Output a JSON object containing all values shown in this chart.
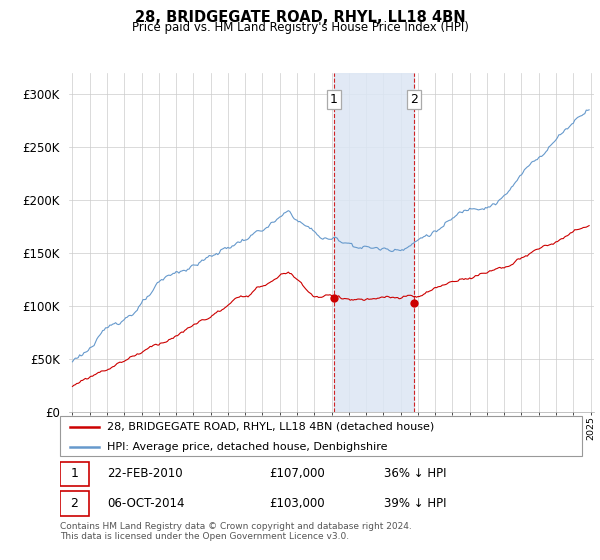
{
  "title": "28, BRIDGEGATE ROAD, RHYL, LL18 4BN",
  "subtitle": "Price paid vs. HM Land Registry's House Price Index (HPI)",
  "hpi_color": "#6699cc",
  "price_color": "#cc0000",
  "highlight_color": "#dce6f4",
  "vline_color": "#cc0000",
  "transaction1_year": 2010.13,
  "transaction1_price": 107000,
  "transaction1_label": "1",
  "transaction2_year": 2014.76,
  "transaction2_price": 103000,
  "transaction2_label": "2",
  "legend_entry1": "28, BRIDGEGATE ROAD, RHYL, LL18 4BN (detached house)",
  "legend_entry2": "HPI: Average price, detached house, Denbighshire",
  "table_row1_date": "22-FEB-2010",
  "table_row1_price": "£107,000",
  "table_row1_pct": "36% ↓ HPI",
  "table_row2_date": "06-OCT-2014",
  "table_row2_price": "£103,000",
  "table_row2_pct": "39% ↓ HPI",
  "footnote_line1": "Contains HM Land Registry data © Crown copyright and database right 2024.",
  "footnote_line2": "This data is licensed under the Open Government Licence v3.0.",
  "ylim_max": 320000,
  "xlim_start": 1994.8,
  "xlim_end": 2025.2
}
